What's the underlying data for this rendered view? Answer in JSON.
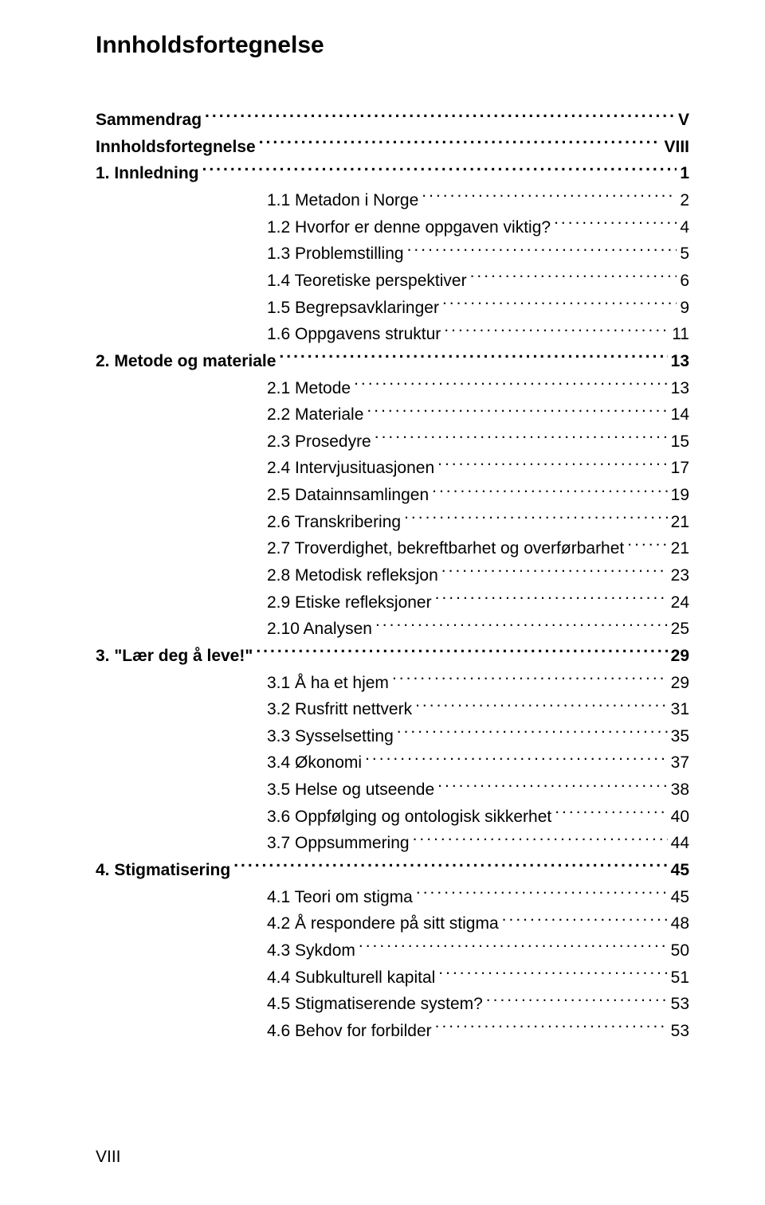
{
  "title": "Innholdsfortegnelse",
  "toc": [
    {
      "label": "Sammendrag",
      "page": "V",
      "bold": true,
      "indent": 0
    },
    {
      "label": "Innholdsfortegnelse",
      "page": "VIII",
      "bold": true,
      "indent": 0
    },
    {
      "label": "1. Innledning",
      "page": "1",
      "bold": true,
      "indent": 0
    },
    {
      "label": "1.1 Metadon i Norge",
      "page": "2",
      "bold": false,
      "indent": 1
    },
    {
      "label": "1.2 Hvorfor er denne oppgaven viktig?",
      "page": "4",
      "bold": false,
      "indent": 1
    },
    {
      "label": "1.3 Problemstilling",
      "page": "5",
      "bold": false,
      "indent": 1
    },
    {
      "label": "1.4 Teoretiske perspektiver",
      "page": "6",
      "bold": false,
      "indent": 1
    },
    {
      "label": "1.5 Begrepsavklaringer",
      "page": "9",
      "bold": false,
      "indent": 1
    },
    {
      "label": "1.6 Oppgavens struktur",
      "page": "11",
      "bold": false,
      "indent": 1
    },
    {
      "label": "2. Metode og materiale",
      "page": "13",
      "bold": true,
      "indent": 0
    },
    {
      "label": "2.1 Metode",
      "page": "13",
      "bold": false,
      "indent": 1
    },
    {
      "label": "2.2 Materiale",
      "page": "14",
      "bold": false,
      "indent": 1
    },
    {
      "label": "2.3 Prosedyre",
      "page": "15",
      "bold": false,
      "indent": 1
    },
    {
      "label": "2.4 Intervjusituasjonen",
      "page": "17",
      "bold": false,
      "indent": 1
    },
    {
      "label": "2.5 Datainnsamlingen",
      "page": "19",
      "bold": false,
      "indent": 1
    },
    {
      "label": "2.6 Transkribering",
      "page": "21",
      "bold": false,
      "indent": 1
    },
    {
      "label": "2.7 Troverdighet, bekreftbarhet og overførbarhet",
      "page": "21",
      "bold": false,
      "indent": 1
    },
    {
      "label": "2.8 Metodisk refleksjon",
      "page": "23",
      "bold": false,
      "indent": 1
    },
    {
      "label": "2.9 Etiske refleksjoner",
      "page": "24",
      "bold": false,
      "indent": 1
    },
    {
      "label": "2.10 Analysen",
      "page": "25",
      "bold": false,
      "indent": 1
    },
    {
      "label": "3. \"Lær deg å leve!\"",
      "page": "29",
      "bold": true,
      "indent": 0
    },
    {
      "label": "3.1 Å ha et hjem",
      "page": "29",
      "bold": false,
      "indent": 1
    },
    {
      "label": "3.2 Rusfritt nettverk",
      "page": "31",
      "bold": false,
      "indent": 1
    },
    {
      "label": "3.3 Sysselsetting",
      "page": "35",
      "bold": false,
      "indent": 1
    },
    {
      "label": "3.4 Økonomi",
      "page": "37",
      "bold": false,
      "indent": 1
    },
    {
      "label": "3.5 Helse og utseende",
      "page": "38",
      "bold": false,
      "indent": 1
    },
    {
      "label": "3.6 Oppfølging og ontologisk sikkerhet",
      "page": "40",
      "bold": false,
      "indent": 1
    },
    {
      "label": "3.7 Oppsummering",
      "page": "44",
      "bold": false,
      "indent": 1
    },
    {
      "label": "4. Stigmatisering",
      "page": "45",
      "bold": true,
      "indent": 0
    },
    {
      "label": "4.1 Teori om stigma",
      "page": "45",
      "bold": false,
      "indent": 1
    },
    {
      "label": "4.2 Å respondere på sitt stigma",
      "page": "48",
      "bold": false,
      "indent": 1
    },
    {
      "label": "4.3 Sykdom",
      "page": "50",
      "bold": false,
      "indent": 1
    },
    {
      "label": "4.4 Subkulturell kapital",
      "page": "51",
      "bold": false,
      "indent": 1
    },
    {
      "label": "4.5 Stigmatiserende system?",
      "page": "53",
      "bold": false,
      "indent": 1
    },
    {
      "label": "4.6 Behov for forbilder",
      "page": "53",
      "bold": false,
      "indent": 1
    }
  ],
  "page_roman": "VIII"
}
